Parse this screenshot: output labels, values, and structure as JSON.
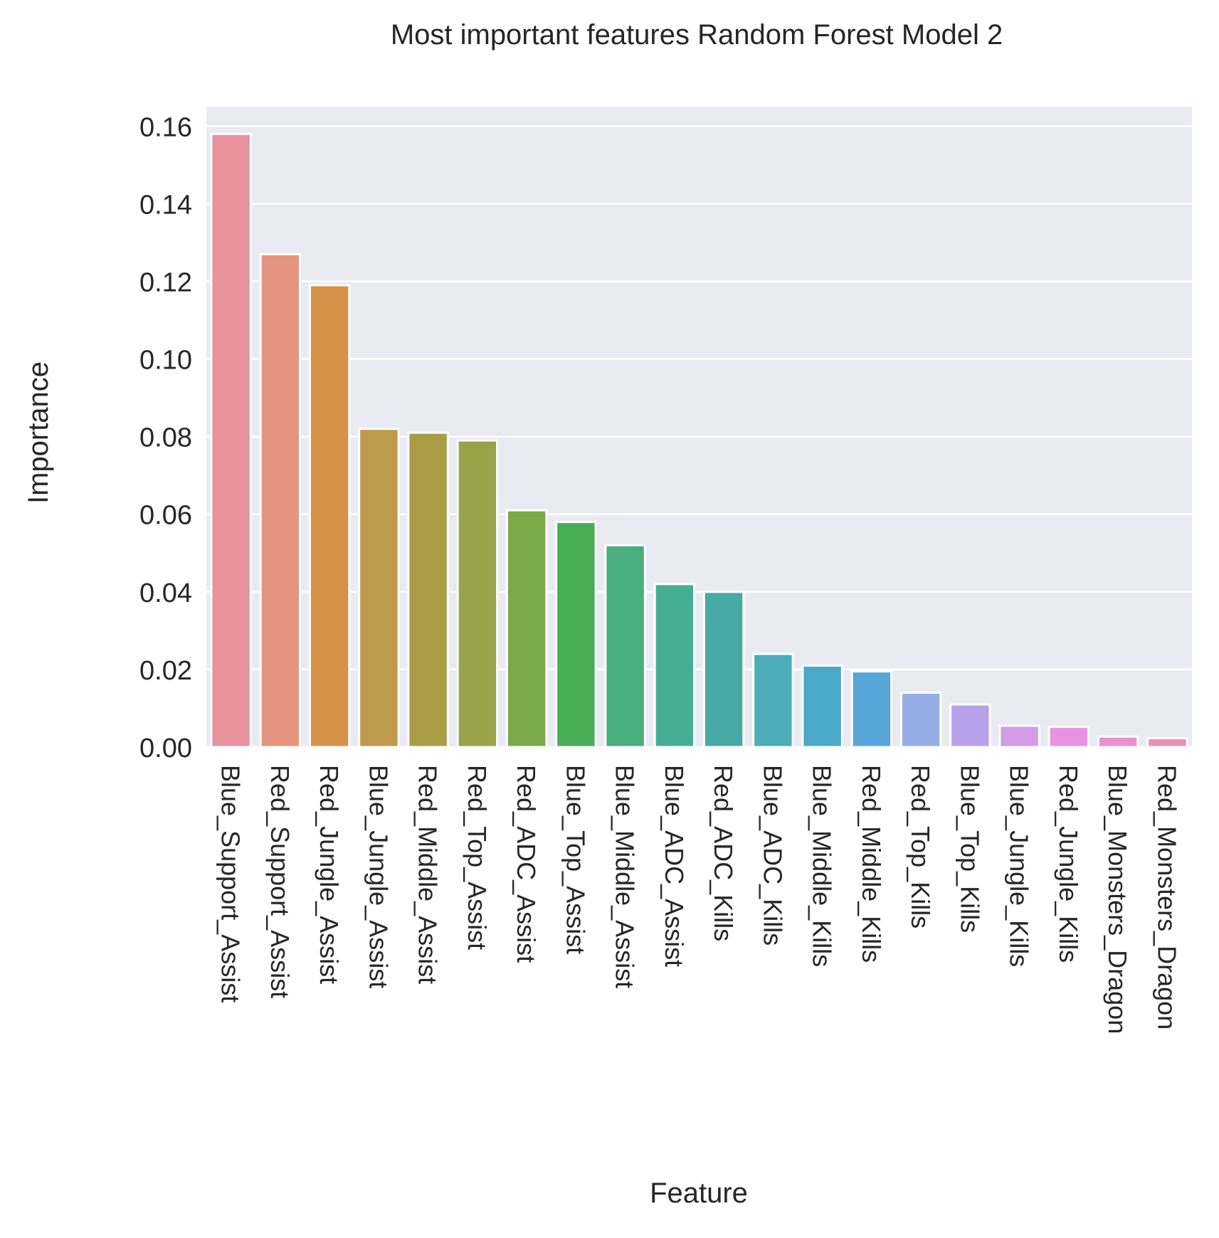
{
  "chart_data": {
    "type": "bar",
    "title": "Most important features Random Forest Model 2",
    "xlabel": "Feature",
    "ylabel": "Importance",
    "ylim": [
      0,
      0.165
    ],
    "yticks": [
      "0.00",
      "0.02",
      "0.04",
      "0.06",
      "0.08",
      "0.10",
      "0.12",
      "0.14",
      "0.16"
    ],
    "grid": true,
    "legend": "none",
    "categories": [
      "Blue_Support_Assist",
      "Red_Support_Assist",
      "Red_Jungle_Assist",
      "Blue_Jungle_Assist",
      "Red_Middle_Assist",
      "Red_Top_Assist",
      "Red_ADC_Assist",
      "Blue_Top_Assist",
      "Blue_Middle_Assist",
      "Blue_ADC_Assist",
      "Red_ADC_Kills",
      "Blue_ADC_Kills",
      "Blue_Middle_Kills",
      "Red_Middle_Kills",
      "Red_Top_Kills",
      "Blue_Top_Kills",
      "Blue_Jungle_Kills",
      "Red_Jungle_Kills",
      "Blue_Monsters_Dragon",
      "Red_Monsters_Dragon"
    ],
    "values": [
      0.158,
      0.127,
      0.119,
      0.082,
      0.081,
      0.079,
      0.061,
      0.058,
      0.052,
      0.042,
      0.04,
      0.024,
      0.021,
      0.0195,
      0.014,
      0.011,
      0.0055,
      0.0052,
      0.0027,
      0.0023
    ],
    "colors": [
      "#e8929d",
      "#e5947f",
      "#d59248",
      "#be9a4a",
      "#aa9c45",
      "#98a249",
      "#7aa948",
      "#48ad55",
      "#48ae7d",
      "#47ae96",
      "#47aaa5",
      "#4aadb8",
      "#4aa9c9",
      "#56a6da",
      "#95ade7",
      "#b7a2ea",
      "#d49be6",
      "#e892e4",
      "#ea90cf",
      "#eb91b9"
    ],
    "plot_bg": "#eaeaf2",
    "grid_color": "#ffffff"
  }
}
